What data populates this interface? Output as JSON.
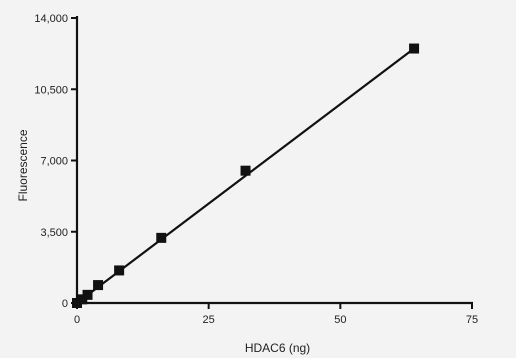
{
  "chart_data": {
    "type": "scatter",
    "xlabel": "HDAC6 (ng)",
    "ylabel": "Fluorescence",
    "xlim": [
      0,
      75
    ],
    "ylim": [
      0,
      14000
    ],
    "x_ticks": [
      0,
      25,
      50,
      75
    ],
    "x_tick_labels": [
      "0",
      "25",
      "50",
      "75"
    ],
    "y_ticks": [
      0,
      3500,
      7000,
      10500,
      14000
    ],
    "y_tick_labels": [
      "0",
      "3,500",
      "7,000",
      "10,500",
      "14,000"
    ],
    "grid": false,
    "points": [
      {
        "x": 0,
        "y": 0
      },
      {
        "x": 1,
        "y": 180
      },
      {
        "x": 2,
        "y": 400
      },
      {
        "x": 4,
        "y": 880
      },
      {
        "x": 8,
        "y": 1600
      },
      {
        "x": 16,
        "y": 3200
      },
      {
        "x": 32,
        "y": 6500
      },
      {
        "x": 64,
        "y": 12500
      }
    ],
    "fit_line": {
      "x": [
        0,
        64
      ],
      "y": [
        0,
        12500
      ]
    },
    "colors": {
      "marker": "#111111",
      "line": "#111111",
      "axis": "#111111",
      "background": "#f3f3f3"
    }
  }
}
